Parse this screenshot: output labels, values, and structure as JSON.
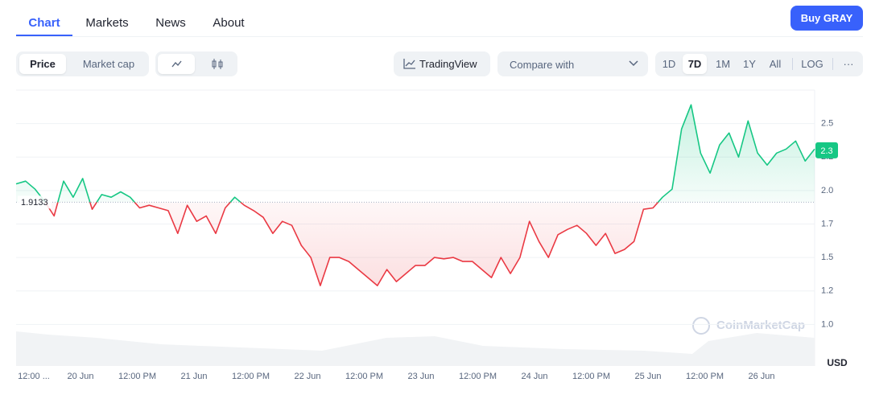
{
  "nav": {
    "tabs": [
      "Chart",
      "Markets",
      "News",
      "About"
    ],
    "button": "Buy GRAY"
  },
  "toolbar": {
    "metric": [
      "Price",
      "Market cap"
    ],
    "tradingview": "TradingView",
    "compare": "Compare with",
    "ranges": [
      "1D",
      "7D",
      "1M",
      "1Y",
      "All"
    ],
    "log": "LOG",
    "more": "···"
  },
  "chart_data": {
    "type": "line",
    "ylim": [
      0.69,
      2.75
    ],
    "yticks": [
      {
        "value": 1,
        "label": "1.0"
      },
      {
        "value": 1.25,
        "label": "1.2"
      },
      {
        "value": 1.5,
        "label": "1.5"
      },
      {
        "value": 1.75,
        "label": "1.7"
      },
      {
        "value": 2,
        "label": "2.0"
      },
      {
        "value": 2.25,
        "label": "2.2"
      },
      {
        "value": 2.5,
        "label": "2.5"
      }
    ],
    "grid": true,
    "baseline": 1.9133,
    "current_price": 2.3,
    "up_color": "#16c784",
    "down_color": "#ea3943",
    "xtick_labels": [
      "12:00 ...",
      "20 Jun",
      "12:00 PM",
      "21 Jun",
      "12:00 PM",
      "22 Jun",
      "12:00 PM",
      "23 Jun",
      "12:00 PM",
      "24 Jun",
      "12:00 PM",
      "25 Jun",
      "12:00 PM",
      "26 Jun"
    ],
    "unit": "USD",
    "watermark": "CoinMarketCap",
    "values": [
      2.05,
      2.07,
      2.01,
      1.92,
      1.81,
      2.07,
      1.95,
      2.09,
      1.86,
      1.97,
      1.95,
      1.99,
      1.95,
      1.87,
      1.89,
      1.87,
      1.85,
      1.68,
      1.89,
      1.77,
      1.81,
      1.68,
      1.87,
      1.95,
      1.89,
      1.85,
      1.8,
      1.68,
      1.77,
      1.74,
      1.59,
      1.5,
      1.29,
      1.5,
      1.5,
      1.47,
      1.41,
      1.35,
      1.29,
      1.41,
      1.32,
      1.38,
      1.44,
      1.44,
      1.5,
      1.49,
      1.5,
      1.47,
      1.47,
      1.41,
      1.35,
      1.5,
      1.38,
      1.5,
      1.77,
      1.62,
      1.5,
      1.67,
      1.71,
      1.74,
      1.68,
      1.59,
      1.68,
      1.53,
      1.56,
      1.62,
      1.86,
      1.87,
      1.95,
      2.01,
      2.46,
      2.64,
      2.28,
      2.13,
      2.34,
      2.43,
      2.25,
      2.52,
      2.28,
      2.19,
      2.28,
      2.31,
      2.37,
      2.22,
      2.31
    ]
  }
}
